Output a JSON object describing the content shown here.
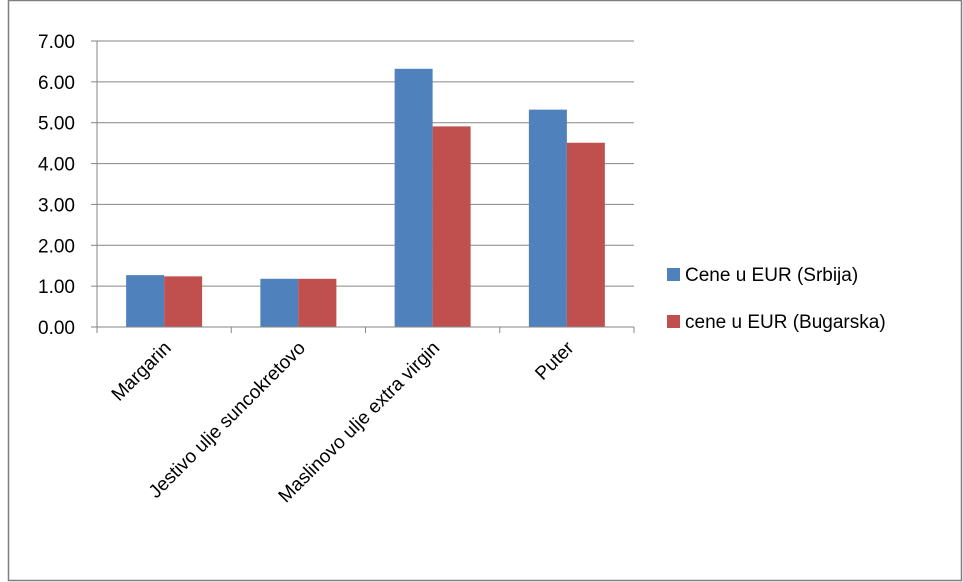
{
  "chart_data": {
    "type": "bar",
    "title": "",
    "xlabel": "",
    "ylabel": "",
    "categories": [
      "Margarin",
      "Jestivo ulje suncokretovo",
      "Maslinovo ulje extra virgin",
      "Puter"
    ],
    "series": [
      {
        "name": "Cene u EUR (Srbija)",
        "color": "#4F81BD",
        "values": [
          1.27,
          1.18,
          6.32,
          5.32
        ]
      },
      {
        "name": "cene u EUR (Bugarska)",
        "color": "#C0504D",
        "values": [
          1.24,
          1.18,
          4.91,
          4.51
        ]
      }
    ],
    "ylim": [
      0,
      7
    ],
    "yticks": [
      "0.00",
      "1.00",
      "2.00",
      "3.00",
      "4.00",
      "5.00",
      "6.00",
      "7.00"
    ],
    "grid": true,
    "legend_position": "right"
  },
  "colors": {
    "gridline": "#868686",
    "axis": "#868686",
    "frame": "#7f7f7f"
  }
}
